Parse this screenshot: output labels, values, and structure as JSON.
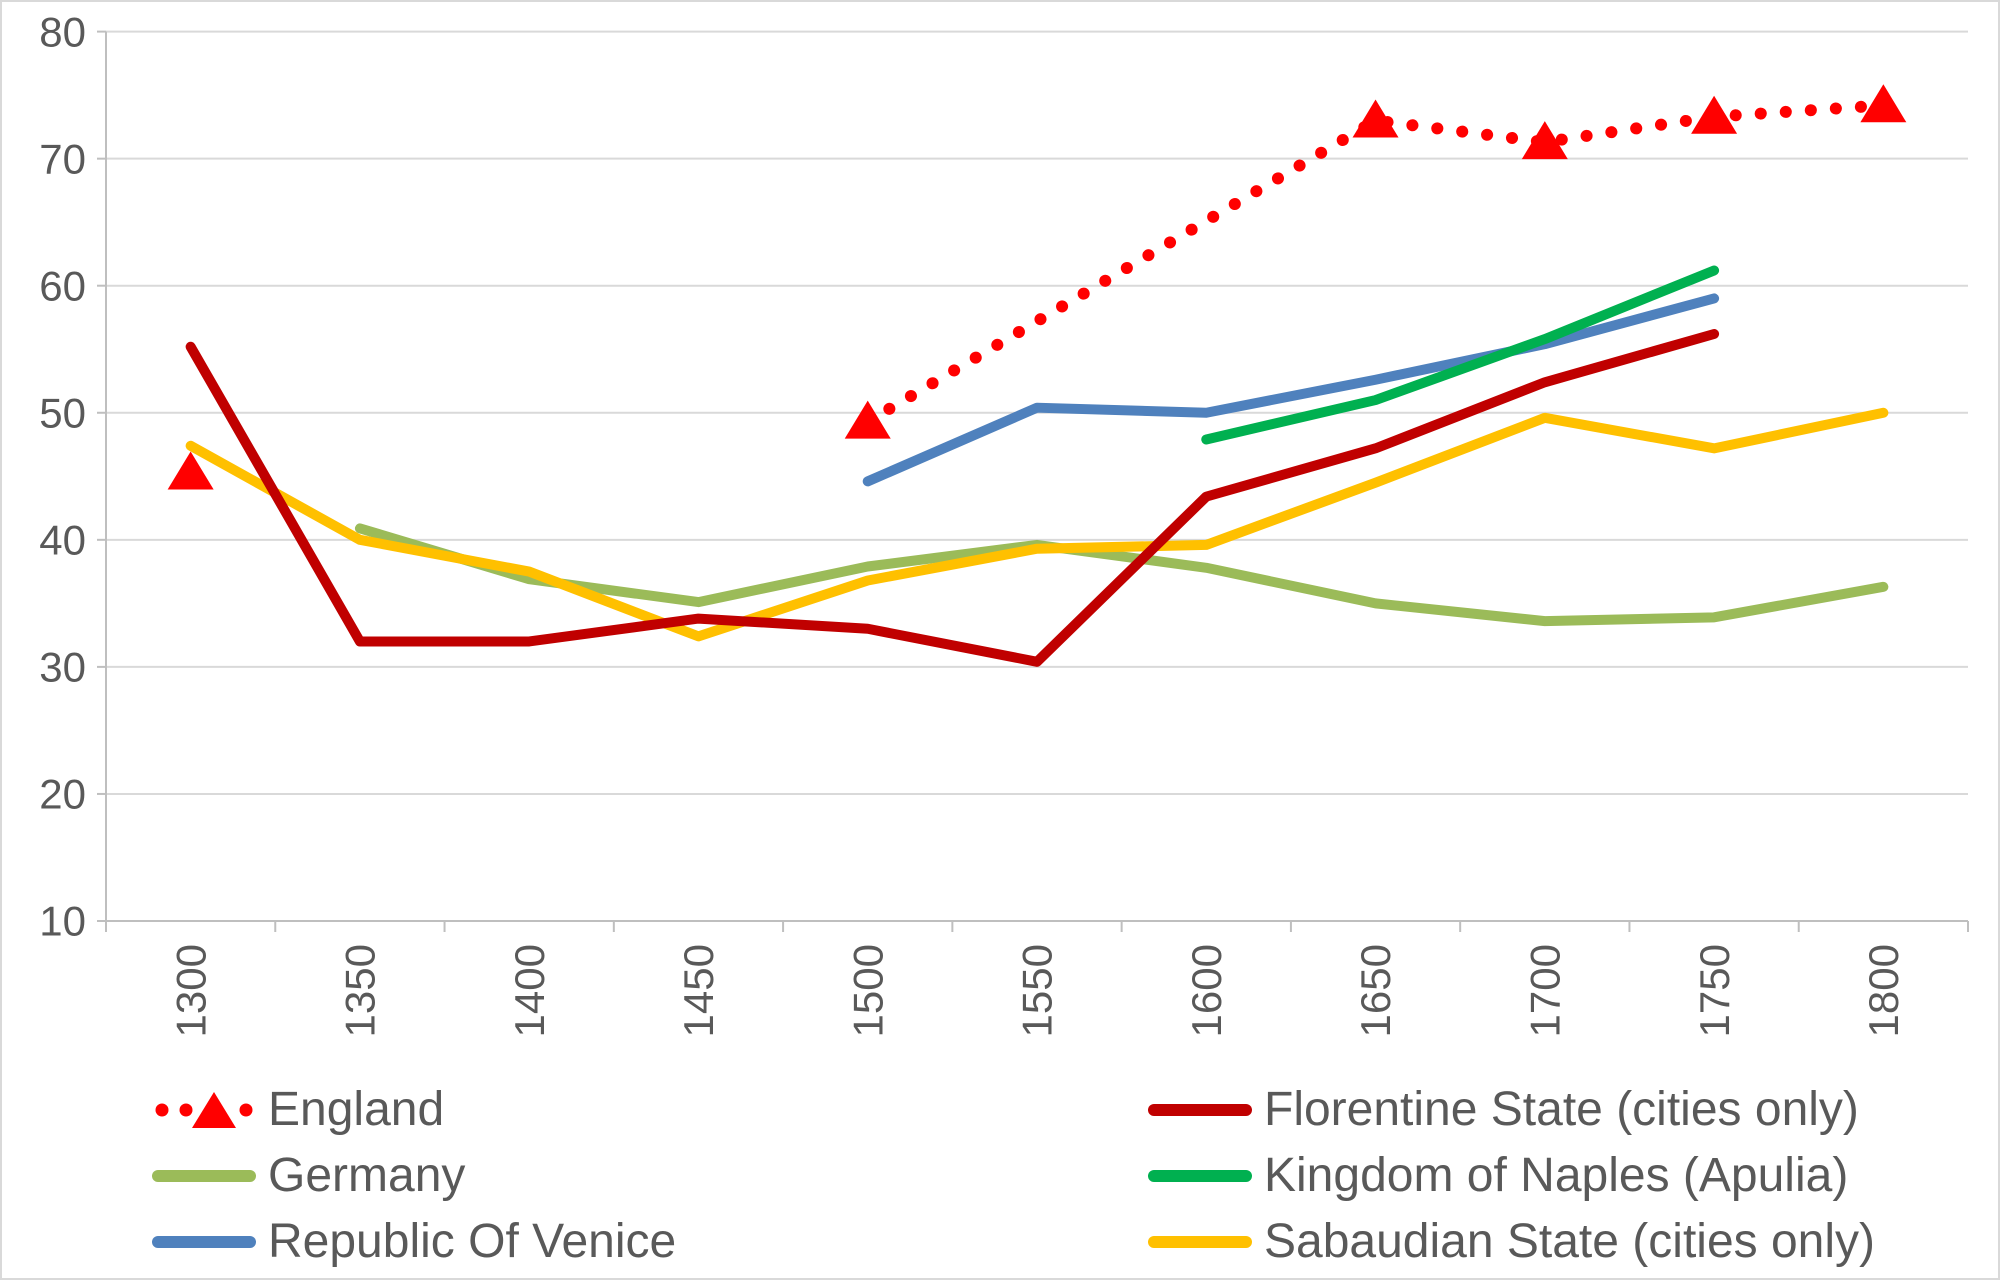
{
  "colors": {
    "background": "#FFFFFF",
    "frame_border": "#D9D9D9",
    "gridline": "#D9D9D9",
    "axis_line": "#BFBFBF",
    "axis_text": "#595959",
    "legend_text": "#595959"
  },
  "chart_data": {
    "type": "line",
    "title": "",
    "xlabel": "",
    "ylabel": "",
    "ylim": [
      10,
      80
    ],
    "y_ticks": [
      80,
      70,
      60,
      50,
      40,
      30,
      20,
      10
    ],
    "x_categories": [
      "1300",
      "1350",
      "1400",
      "1450",
      "1500",
      "1550",
      "1600",
      "1650",
      "1700",
      "1750",
      "1800"
    ],
    "grid": "horizontal",
    "legend_position": "bottom-two-columns",
    "series": [
      {
        "id": "england",
        "name": "England",
        "color": "#FF0000",
        "line_style": "dotted",
        "marker": "triangle",
        "marker_points": [
          [
            1300,
            45.3
          ],
          [
            1500,
            49.3
          ],
          [
            1650,
            73.0
          ],
          [
            1700,
            71.3
          ],
          [
            1750,
            73.3
          ],
          [
            1800,
            74.2
          ]
        ],
        "line_points": [
          [
            1500,
            49.3
          ],
          [
            1650,
            73.0
          ],
          [
            1700,
            71.3
          ],
          [
            1750,
            73.3
          ],
          [
            1800,
            74.2
          ]
        ]
      },
      {
        "id": "florentine",
        "name": "Florentine State (cities only)",
        "color": "#C00000",
        "line_style": "solid",
        "marker": "none",
        "marker_points": [],
        "line_points": [
          [
            1300,
            55.2
          ],
          [
            1350,
            32.0
          ],
          [
            1400,
            32.0
          ],
          [
            1450,
            33.8
          ],
          [
            1500,
            33.0
          ],
          [
            1550,
            30.4
          ],
          [
            1600,
            43.4
          ],
          [
            1650,
            47.2
          ],
          [
            1700,
            52.4
          ],
          [
            1750,
            56.2
          ]
        ]
      },
      {
        "id": "germany",
        "name": "Germany",
        "color": "#9BBB59",
        "line_style": "solid",
        "marker": "none",
        "marker_points": [],
        "line_points": [
          [
            1350,
            40.9
          ],
          [
            1400,
            36.9
          ],
          [
            1450,
            35.1
          ],
          [
            1500,
            37.9
          ],
          [
            1550,
            39.6
          ],
          [
            1600,
            37.8
          ],
          [
            1650,
            35.0
          ],
          [
            1700,
            33.6
          ],
          [
            1750,
            33.9
          ],
          [
            1800,
            36.3
          ]
        ]
      },
      {
        "id": "naples",
        "name": "Kingdom of Naples (Apulia)",
        "color": "#00B050",
        "line_style": "solid",
        "marker": "none",
        "marker_points": [],
        "line_points": [
          [
            1600,
            47.9
          ],
          [
            1650,
            51.0
          ],
          [
            1700,
            55.8
          ],
          [
            1750,
            61.2
          ]
        ]
      },
      {
        "id": "venice",
        "name": "Republic Of Venice",
        "color": "#4F81BD",
        "line_style": "solid",
        "marker": "none",
        "marker_points": [],
        "line_points": [
          [
            1500,
            44.6
          ],
          [
            1550,
            50.4
          ],
          [
            1600,
            50.0
          ],
          [
            1650,
            52.6
          ],
          [
            1700,
            55.4
          ],
          [
            1750,
            59.0
          ]
        ]
      },
      {
        "id": "sabaudian",
        "name": "Sabaudian State (cities only)",
        "color": "#FFC000",
        "line_style": "solid",
        "marker": "none",
        "marker_points": [],
        "line_points": [
          [
            1300,
            47.4
          ],
          [
            1350,
            40.0
          ],
          [
            1400,
            37.5
          ],
          [
            1450,
            32.4
          ],
          [
            1500,
            36.8
          ],
          [
            1550,
            39.3
          ],
          [
            1600,
            39.6
          ],
          [
            1650,
            44.5
          ],
          [
            1700,
            49.6
          ],
          [
            1750,
            47.2
          ],
          [
            1800,
            50.0
          ]
        ]
      }
    ],
    "draw_order": [
      "germany",
      "sabaudian",
      "venice",
      "naples",
      "florentine",
      "england"
    ],
    "legend_columns": [
      [
        "england",
        "germany",
        "venice"
      ],
      [
        "florentine",
        "naples",
        "sabaudian"
      ]
    ]
  }
}
